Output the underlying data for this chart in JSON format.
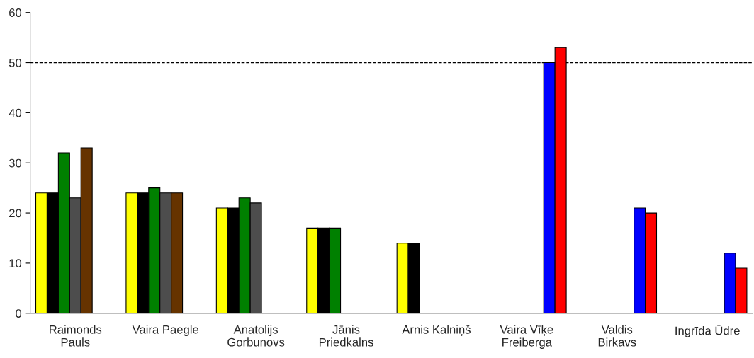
{
  "chart_data": {
    "type": "bar",
    "categories": [
      "Raimonds\nPauls",
      "Vaira Paegle",
      "Anatolijs\nGorbunovs",
      "Jānis\nPriedkalns",
      "Arnis Kalniņš",
      "Vaira Vīķe\nFreiberga",
      "Valdis\nBirkavs",
      "Ingrīda Ūdre"
    ],
    "series": [
      {
        "color": "#ffff00",
        "values": [
          24,
          24,
          21,
          17,
          14,
          null,
          null,
          null
        ]
      },
      {
        "color": "#000000",
        "values": [
          24,
          24,
          21,
          17,
          14,
          null,
          null,
          null
        ]
      },
      {
        "color": "#008000",
        "values": [
          32,
          25,
          23,
          17,
          null,
          null,
          null,
          null
        ]
      },
      {
        "color": "#4d4d4d",
        "values": [
          23,
          24,
          22,
          null,
          null,
          null,
          null,
          null
        ]
      },
      {
        "color": "#663300",
        "values": [
          33,
          24,
          null,
          null,
          null,
          null,
          null,
          null
        ]
      },
      {
        "color": "#0000ff",
        "values": [
          null,
          null,
          null,
          null,
          null,
          50,
          21,
          12
        ]
      },
      {
        "color": "#ff0000",
        "values": [
          null,
          null,
          null,
          null,
          null,
          53,
          20,
          9
        ]
      }
    ],
    "ylim": [
      0,
      60
    ],
    "yticks": [
      0,
      10,
      20,
      30,
      40,
      50,
      60
    ],
    "ref_lines": [
      {
        "axis": "y",
        "value": 50,
        "color": "#000000",
        "line_style": "dashed"
      }
    ],
    "grid": false,
    "legend": false
  }
}
